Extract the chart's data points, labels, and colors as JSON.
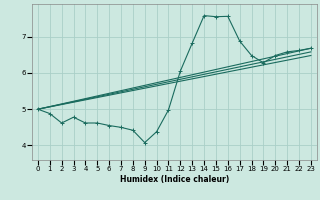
{
  "xlabel": "Humidex (Indice chaleur)",
  "background_color": "#cce8e0",
  "grid_color": "#aacfc8",
  "line_color": "#1a6b5e",
  "xlim": [
    -0.5,
    23.5
  ],
  "ylim": [
    3.6,
    7.9
  ],
  "xticks": [
    0,
    1,
    2,
    3,
    4,
    5,
    6,
    7,
    8,
    9,
    10,
    11,
    12,
    13,
    14,
    15,
    16,
    17,
    18,
    19,
    20,
    21,
    22,
    23
  ],
  "yticks": [
    4,
    5,
    6,
    7
  ],
  "series": [
    {
      "x": [
        0,
        1,
        2,
        3,
        4,
        5,
        6,
        7,
        8,
        9,
        10,
        11,
        12,
        13,
        14,
        15,
        16,
        17,
        18,
        19,
        20,
        21,
        22,
        23
      ],
      "y": [
        5.0,
        4.88,
        4.62,
        4.78,
        4.62,
        4.62,
        4.55,
        4.5,
        4.42,
        4.08,
        4.38,
        4.98,
        6.05,
        6.82,
        7.58,
        7.55,
        7.56,
        6.88,
        6.48,
        6.28,
        6.48,
        6.58,
        6.62,
        6.68
      ],
      "markers": true
    },
    {
      "x": [
        0,
        23
      ],
      "y": [
        5.0,
        6.68
      ],
      "markers": false
    },
    {
      "x": [
        0,
        23
      ],
      "y": [
        5.0,
        6.58
      ],
      "markers": false
    },
    {
      "x": [
        0,
        23
      ],
      "y": [
        5.0,
        6.48
      ],
      "markers": false
    }
  ]
}
